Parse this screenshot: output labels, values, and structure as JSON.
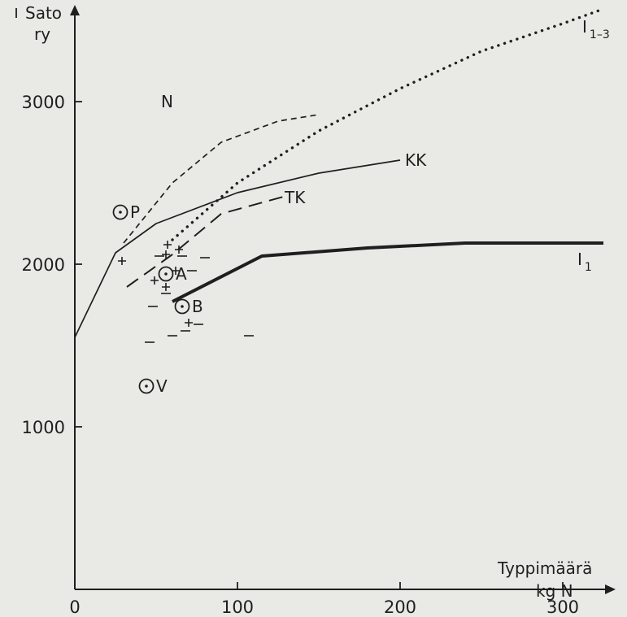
{
  "chart_data": {
    "type": "line",
    "title": "",
    "xlabel": [
      "Typpimäärä",
      "kg N"
    ],
    "ylabel": [
      "Sato",
      "ry"
    ],
    "xlim": [
      0,
      325
    ],
    "ylim": [
      0,
      3600
    ],
    "xticks": [
      0,
      100,
      200,
      300
    ],
    "yticks": [
      1000,
      2000,
      3000
    ],
    "grid": false,
    "colors": {
      "ink": "#1f1f1f",
      "background": "#e9e9e5"
    },
    "series": [
      {
        "name": "N",
        "style": "dashed",
        "values": [
          [
            30,
            2130
          ],
          [
            60,
            2500
          ],
          [
            90,
            2750
          ],
          [
            125,
            2880
          ],
          [
            150,
            2920
          ]
        ]
      },
      {
        "name": "KK",
        "style": "solid-thin",
        "values": [
          [
            0,
            1550
          ],
          [
            25,
            2070
          ],
          [
            50,
            2250
          ],
          [
            100,
            2440
          ],
          [
            150,
            2560
          ],
          [
            200,
            2640
          ]
        ]
      },
      {
        "name": "TK",
        "style": "long-dash",
        "values": [
          [
            32,
            1860
          ],
          [
            60,
            2060
          ],
          [
            90,
            2310
          ],
          [
            130,
            2420
          ]
        ]
      },
      {
        "name": "I",
        "sub": "1",
        "style": "solid-thick",
        "values": [
          [
            60,
            1770
          ],
          [
            115,
            2050
          ],
          [
            180,
            2100
          ],
          [
            240,
            2130
          ],
          [
            325,
            2130
          ]
        ]
      },
      {
        "name": "I",
        "sub": "1–3",
        "style": "dotted",
        "values": [
          [
            60,
            2150
          ],
          [
            100,
            2500
          ],
          [
            150,
            2820
          ],
          [
            200,
            3080
          ],
          [
            250,
            3310
          ],
          [
            300,
            3480
          ],
          [
            325,
            3570
          ]
        ]
      }
    ],
    "markers": {
      "circled": [
        {
          "label": "P",
          "x": 28,
          "y": 2320
        },
        {
          "label": "A",
          "x": 56,
          "y": 1940
        },
        {
          "label": "B",
          "x": 66,
          "y": 1740
        },
        {
          "label": "V",
          "x": 44,
          "y": 1250
        }
      ],
      "plus": [
        [
          29,
          2020
        ],
        [
          57,
          2120
        ],
        [
          64,
          2090
        ],
        [
          56,
          2060
        ],
        [
          49,
          1900
        ],
        [
          56,
          1860
        ],
        [
          62,
          1960
        ],
        [
          70,
          1640
        ]
      ],
      "minus": [
        [
          52,
          2050
        ],
        [
          66,
          2050
        ],
        [
          80,
          2040
        ],
        [
          72,
          1960
        ],
        [
          48,
          1740
        ],
        [
          56,
          1820
        ],
        [
          76,
          1630
        ],
        [
          60,
          1560
        ],
        [
          68,
          1590
        ],
        [
          46,
          1520
        ],
        [
          107,
          1560
        ]
      ]
    }
  }
}
